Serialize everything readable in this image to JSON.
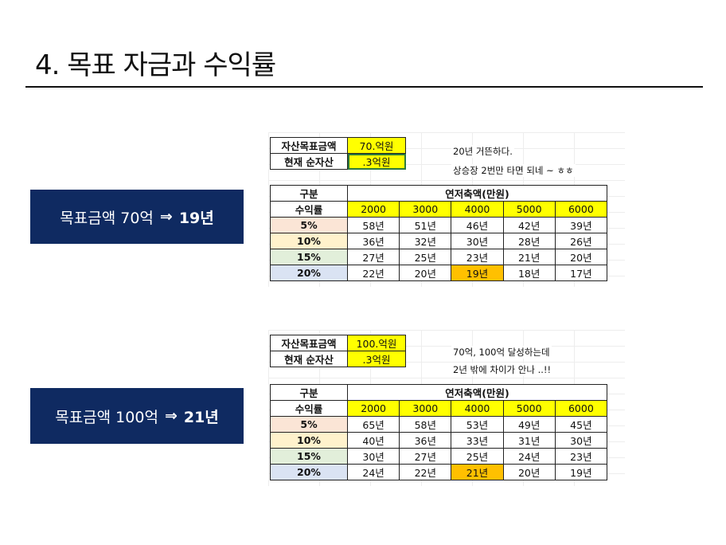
{
  "title": "4. 목표 자금과 수익률",
  "sections": [
    {
      "banner": {
        "text": "목표금액 70억",
        "arrow": "⇒",
        "result": "19년"
      },
      "goal_label": "자산목표금액",
      "goal_value": "70.억원",
      "asset_label": "현재 순자산",
      "asset_value": ".3억원",
      "note1": "20년 거뜬하다.",
      "note2": "상승장 2번만 타면 되네 ~ ㅎㅎ",
      "table": {
        "header_left": "구분",
        "header_right": "연저축액(만원)",
        "rate_label": "수익률",
        "columns": [
          "2000",
          "3000",
          "4000",
          "5000",
          "6000"
        ],
        "rows": [
          {
            "rate": "5%",
            "values": [
              "58년",
              "51년",
              "46년",
              "42년",
              "39년"
            ]
          },
          {
            "rate": "10%",
            "values": [
              "36년",
              "32년",
              "30년",
              "28년",
              "26년"
            ]
          },
          {
            "rate": "15%",
            "values": [
              "27년",
              "25년",
              "23년",
              "21년",
              "20년"
            ]
          },
          {
            "rate": "20%",
            "values": [
              "22년",
              "20년",
              "19년",
              "18년",
              "17년"
            ]
          }
        ]
      }
    },
    {
      "banner": {
        "text": "목표금액 100억",
        "arrow": "⇒",
        "result": "21년"
      },
      "goal_label": "자산목표금액",
      "goal_value": "100.억원",
      "asset_label": "현재 순자산",
      "asset_value": ".3억원",
      "note1": "70억, 100억 달성하는데",
      "note2": "2년 밖에 차이가 안나 ..!!",
      "table": {
        "header_left": "구분",
        "header_right": "연저축액(만원)",
        "rate_label": "수익률",
        "columns": [
          "2000",
          "3000",
          "4000",
          "5000",
          "6000"
        ],
        "rows": [
          {
            "rate": "5%",
            "values": [
              "65년",
              "58년",
              "53년",
              "49년",
              "45년"
            ]
          },
          {
            "rate": "10%",
            "values": [
              "40년",
              "36년",
              "33년",
              "31년",
              "30년"
            ]
          },
          {
            "rate": "15%",
            "values": [
              "30년",
              "27년",
              "25년",
              "24년",
              "23년"
            ]
          },
          {
            "rate": "20%",
            "values": [
              "24년",
              "22년",
              "21년",
              "20년",
              "19년"
            ]
          }
        ]
      }
    }
  ],
  "colors": {
    "navy": "#0f2a61",
    "yellow": "#ffff00",
    "orange": "#ffc000",
    "rate5": "#fbe5d6",
    "rate10": "#fff2cc",
    "rate15": "#e2efda",
    "rate20": "#dae3f3"
  }
}
